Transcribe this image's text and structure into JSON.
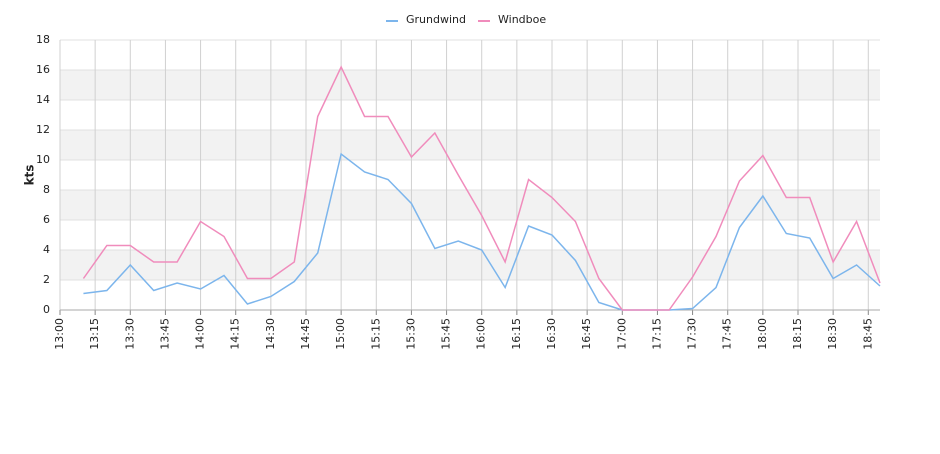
{
  "chart_data": {
    "type": "line",
    "y_label": "kts",
    "x": [
      "13:10",
      "13:20",
      "13:30",
      "13:40",
      "13:50",
      "14:00",
      "14:10",
      "14:20",
      "14:30",
      "14:40",
      "14:50",
      "15:00",
      "15:10",
      "15:20",
      "15:30",
      "15:40",
      "15:50",
      "16:00",
      "16:10",
      "16:20",
      "16:30",
      "16:40",
      "16:50",
      "17:00",
      "17:10",
      "17:20",
      "17:30",
      "17:40",
      "17:50",
      "18:00",
      "18:10",
      "18:20",
      "18:30",
      "18:40",
      "18:50"
    ],
    "series": [
      {
        "name": "Grundwind",
        "color": "#7cb5ec",
        "values": [
          1.1,
          1.3,
          3.0,
          1.3,
          1.8,
          1.4,
          2.3,
          0.4,
          0.9,
          1.9,
          3.8,
          10.4,
          9.2,
          8.7,
          7.1,
          4.1,
          4.6,
          4.0,
          1.5,
          5.6,
          5.0,
          3.3,
          0.5,
          0,
          0,
          0,
          0.1,
          1.5,
          5.5,
          7.6,
          5.1,
          4.8,
          2.1,
          3.0,
          1.6
        ]
      },
      {
        "name": "Windboe",
        "color": "#f08cbc",
        "values": [
          2.1,
          4.3,
          4.3,
          3.2,
          3.2,
          5.9,
          4.9,
          2.1,
          2.1,
          3.2,
          12.9,
          16.2,
          12.9,
          12.9,
          10.2,
          11.8,
          9.0,
          6.3,
          3.2,
          8.7,
          7.5,
          5.9,
          2.1,
          0,
          0,
          0,
          2.2,
          4.9,
          8.6,
          10.3,
          7.5,
          7.5,
          3.2,
          5.9,
          1.8
        ]
      }
    ],
    "xlim": [
      "13:00",
      "18:50"
    ],
    "xticks": [
      "13:00",
      "13:15",
      "13:30",
      "13:45",
      "14:00",
      "14:15",
      "14:30",
      "14:45",
      "15:00",
      "15:15",
      "15:30",
      "15:45",
      "16:00",
      "16:15",
      "16:30",
      "16:45",
      "17:00",
      "17:15",
      "17:30",
      "17:45",
      "18:00",
      "18:15",
      "18:30",
      "18:45"
    ],
    "ylim": [
      0,
      18
    ],
    "yticks": [
      0,
      2,
      4,
      6,
      8,
      10,
      12,
      14,
      16,
      18
    ],
    "grid": true,
    "legend": "top"
  }
}
